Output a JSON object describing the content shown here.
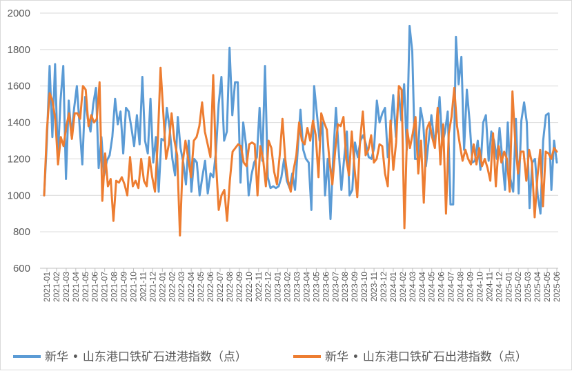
{
  "chart_data": {
    "type": "line",
    "title": "",
    "xlabel": "",
    "ylabel": "",
    "ylim": [
      600,
      2000
    ],
    "yticks": [
      600,
      800,
      1000,
      1200,
      1400,
      1600,
      1800,
      2000
    ],
    "grid": true,
    "legend_position": "bottom",
    "x_tick_labels": [
      "2021-01",
      "2021-02",
      "2021-03",
      "2021-04",
      "2021-05",
      "2021-06",
      "2021-07",
      "2021-08",
      "2021-09",
      "2021-10",
      "2021-11",
      "2021-12",
      "2022-01",
      "2022-02",
      "2022-03",
      "2022-04",
      "2022-05",
      "2022-06",
      "2022-07",
      "2022-08",
      "2022-09",
      "2022-10",
      "2022-11",
      "2022-12",
      "2023-01",
      "2023-02",
      "2023-03",
      "2023-04",
      "2023-05",
      "2023-06",
      "2023-07",
      "2023-08",
      "2023-09",
      "2023-10",
      "2023-11",
      "2023-12",
      "2024-01",
      "2024-02",
      "2024-03",
      "2024-04",
      "2024-05",
      "2024-06",
      "2024-07",
      "2024-08",
      "2024-09",
      "2024-10",
      "2024-11",
      "2024-12",
      "2025-01",
      "2025-02",
      "2025-03",
      "2025-04",
      "2025-05",
      "2025-06"
    ],
    "series": [
      {
        "name": "新华 • 山东港口铁矿石进港指数（点）",
        "color": "#5B9BD5",
        "values": [
          1000,
          1300,
          1710,
          1320,
          1720,
          1200,
          1520,
          1710,
          1090,
          1520,
          1330,
          1480,
          1600,
          1380,
          1170,
          1540,
          1420,
          1350,
          1500,
          1590,
          1150,
          1320,
          1110,
          1190,
          1220,
          1320,
          1530,
          1390,
          1460,
          1230,
          1480,
          1460,
          1370,
          1270,
          1440,
          1280,
          1650,
          1300,
          1230,
          1530,
          1180,
          1320,
          1020,
          1310,
          1300,
          1480,
          1370,
          1200,
          1110,
          1430,
          1260,
          1180,
          1060,
          1300,
          1020,
          1200,
          1180,
          1000,
          1100,
          1190,
          1010,
          1120,
          1100,
          1240,
          1500,
          1650,
          1300,
          1350,
          1810,
          1440,
          1620,
          1620,
          1070,
          1400,
          1280,
          1000,
          1110,
          1180,
          1210,
          1480,
          1190,
          1710,
          1100,
          1040,
          1050,
          1040,
          1050,
          1100,
          1200,
          1080,
          1040,
          1120,
          1030,
          1250,
          1470,
          1250,
          1200,
          1180,
          920,
          1600,
          1450,
          1300,
          1400,
          1000,
          1200,
          870,
          1210,
          1480,
          1250,
          1030,
          1200,
          1350,
          1000,
          1030,
          1290,
          1210,
          1300,
          1330,
          1280,
          1210,
          1200,
          1260,
          1520,
          1400,
          1450,
          1480,
          1210,
          1350,
          1550,
          1320,
          1570,
          1410,
          1610,
          1250,
          1930,
          1790,
          1200,
          1200,
          1480,
          1400,
          1160,
          1300,
          1440,
          1300,
          1350,
          1540,
          1280,
          1350,
          1460,
          950,
          950,
          1870,
          1610,
          1760,
          1250,
          1580,
          1410,
          1180,
          1190,
          1300,
          1140,
          1400,
          1440,
          1190,
          1350,
          1300,
          1200,
          1370,
          1200,
          1030,
          1400,
          1090,
          1020,
          1420,
          1010,
          1410,
          1510,
          1400,
          930,
          1180,
          1200,
          1000,
          900,
          1300,
          1440,
          1450,
          1030,
          1300,
          1180
        ]
      },
      {
        "name": "新华 • 山东港口铁矿石出港指数（点）",
        "color": "#ED7D31",
        "values": [
          1000,
          1360,
          1560,
          1520,
          1420,
          1170,
          1320,
          1270,
          1380,
          1450,
          1310,
          1450,
          1450,
          1420,
          1600,
          1580,
          1380,
          1440,
          1400,
          1420,
          1620,
          970,
          1230,
          1050,
          1090,
          860,
          1080,
          1070,
          1100,
          1060,
          1000,
          1210,
          1050,
          1080,
          1040,
          1200,
          1080,
          1050,
          1210,
          1100,
          1020,
          1300,
          1700,
          1450,
          1200,
          1280,
          1450,
          1300,
          1220,
          780,
          1180,
          1300,
          1200,
          1100,
          1300,
          1320,
          1380,
          1510,
          1350,
          1280,
          1210,
          1660,
          1180,
          920,
          1000,
          1030,
          860,
          1080,
          1240,
          1260,
          1280,
          1270,
          1180,
          1160,
          1280,
          1290,
          1280,
          1000,
          1270,
          1200,
          1050,
          1300,
          1260,
          1130,
          1060,
          1220,
          1420,
          1200,
          1080,
          1020,
          1140,
          1220,
          1400,
          1300,
          1280,
          1370,
          1300,
          1410,
          1330,
          1100,
          1450,
          1400,
          1360,
          1180,
          1060,
          1240,
          1390,
          1380,
          1430,
          1200,
          1110,
          1350,
          1150,
          990,
          1300,
          1460,
          1220,
          1250,
          1330,
          1180,
          1200,
          1280,
          1270,
          1120,
          1050,
          1410,
          1140,
          1290,
          1600,
          1580,
          820,
          1360,
          1260,
          1340,
          1430,
          1120,
          1300,
          960,
          1360,
          1400,
          1320,
          1260,
          1480,
          1170,
          1390,
          900,
          1340,
          1430,
          1590,
          1380,
          1280,
          1190,
          1250,
          1200,
          1170,
          1280,
          1170,
          1260,
          1160,
          1200,
          1150,
          1080,
          1340,
          1050,
          1270,
          1180,
          1240,
          1200,
          1020,
          1570,
          1290,
          1120,
          1240,
          1240,
          1080,
          1250,
          1180,
          880,
          1100,
          1250,
          940,
          1240,
          1230,
          1200,
          1260,
          1240
        ]
      }
    ]
  }
}
